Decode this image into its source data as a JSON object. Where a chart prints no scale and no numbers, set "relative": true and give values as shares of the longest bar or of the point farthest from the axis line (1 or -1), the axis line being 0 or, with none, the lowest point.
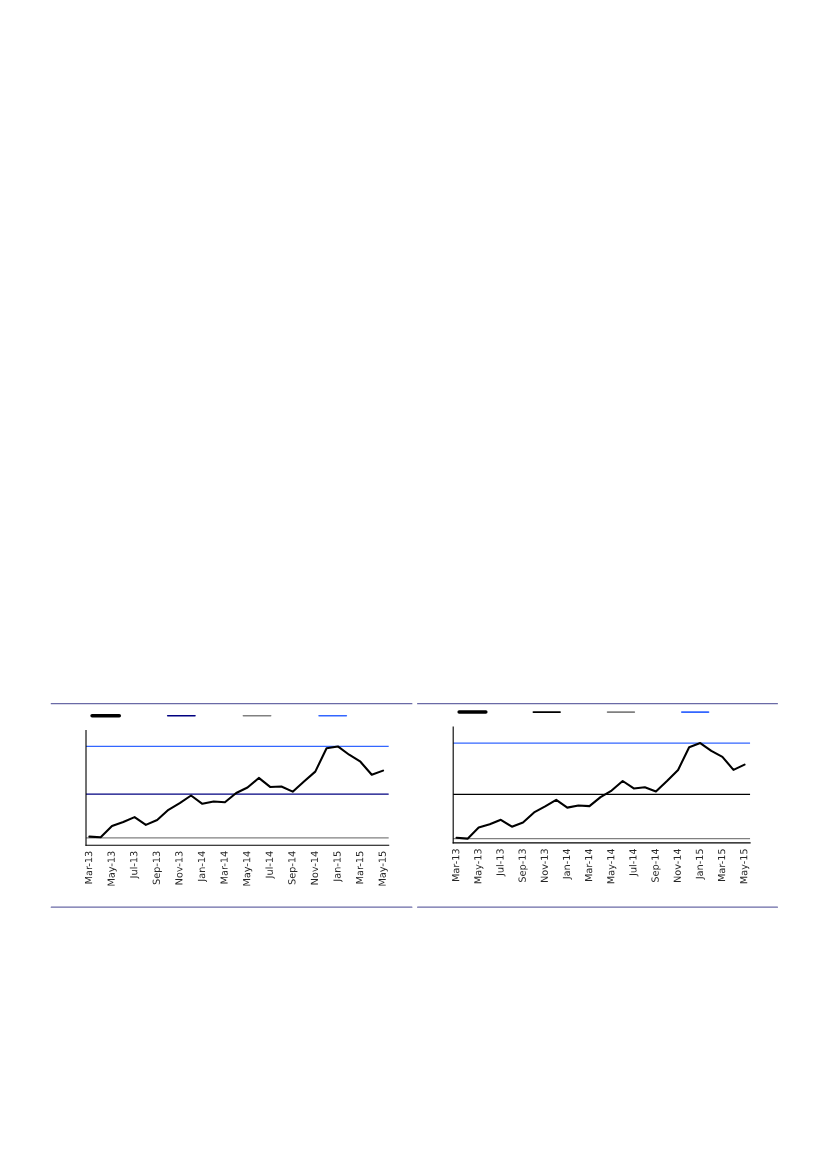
{
  "chart_data": [
    {
      "type": "line",
      "relative": true,
      "grid": false,
      "tick_labels": "x",
      "categories": [
        "Mar-13",
        null,
        "May-13",
        null,
        "Jul-13",
        null,
        "Sep-13",
        null,
        "Nov-13",
        null,
        "Jan-14",
        null,
        "Mar-14",
        null,
        "May-14",
        null,
        "Jul-14",
        null,
        "Sep-14",
        null,
        "Nov-14",
        null,
        "Jan-15",
        null,
        "Mar-15",
        null,
        "May-15"
      ],
      "series": [
        {
          "color": "#000000",
          "values": [
            0.087,
            0.081,
            0.194,
            0.235,
            0.284,
            0.206,
            0.255,
            0.358,
            0.426,
            0.503,
            0.419,
            0.442,
            0.435,
            0.529,
            0.584,
            0.681,
            0.59,
            0.594,
            0.542,
            0.645,
            0.745,
            0.981,
            1,
            0.916,
            0.845,
            0.713,
            0.755
          ]
        }
      ],
      "ref_lines": [
        {
          "axis": "y",
          "value": 0.516,
          "color": "#000080"
        },
        {
          "axis": "y",
          "value": 0.074,
          "color": "#808080"
        },
        {
          "axis": "y",
          "value": 1.0,
          "color": "#3366ff"
        }
      ]
    },
    {
      "type": "line",
      "relative": true,
      "grid": false,
      "tick_labels": "x",
      "categories": [
        "Mar-13",
        null,
        "May-13",
        null,
        "Jul-13",
        null,
        "Sep-13",
        null,
        "Nov-13",
        null,
        "Jan-14",
        null,
        "Mar-14",
        null,
        "May-14",
        null,
        "Jul-14",
        null,
        "Sep-14",
        null,
        "Nov-14",
        null,
        "Jan-15",
        null,
        "Mar-15",
        null,
        "May-15"
      ],
      "series": [
        {
          "color": "#000000",
          "values": [
            0.051,
            0.042,
            0.153,
            0.186,
            0.231,
            0.162,
            0.204,
            0.305,
            0.365,
            0.431,
            0.353,
            0.374,
            0.368,
            0.458,
            0.524,
            0.62,
            0.545,
            0.557,
            0.515,
            0.62,
            0.731,
            0.958,
            1,
            0.922,
            0.862,
            0.732,
            0.784
          ]
        }
      ],
      "ref_lines": [
        {
          "axis": "y",
          "value": 0.485,
          "color": "#000000"
        },
        {
          "axis": "y",
          "value": 0.042,
          "color": "#808080"
        },
        {
          "axis": "y",
          "value": 1.0,
          "color": "#3366ff"
        }
      ]
    }
  ]
}
